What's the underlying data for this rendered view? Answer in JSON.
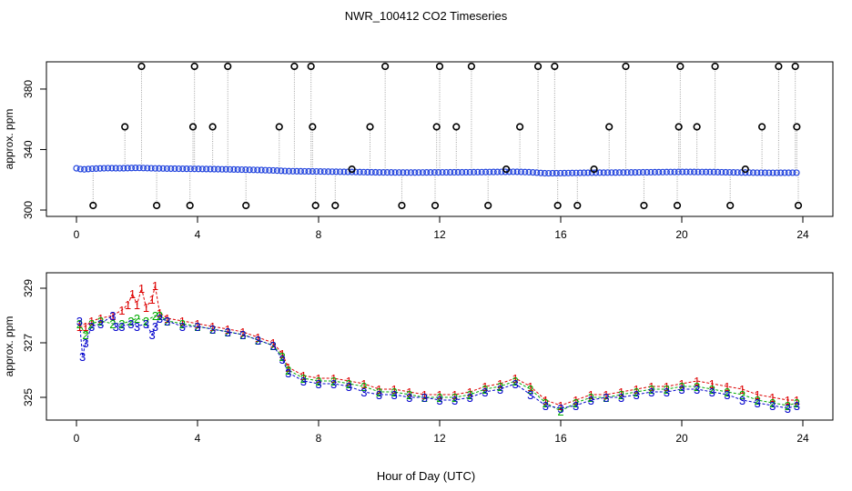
{
  "title": "NWR_100412  CO2 Timeseries",
  "xlabel": "Hour of Day (UTC)",
  "colors": {
    "axis": "#000000",
    "outlier": "#000000",
    "line": "#a0a0a0",
    "series1": "#dd0000",
    "series2": "#00aa00",
    "series3": "#0000cc",
    "point": "#2244dd",
    "cyan": "#00cccc"
  },
  "chart_data": [
    {
      "type": "scatter",
      "panel": "top",
      "ylabel": "approx. ppm",
      "xlim": [
        0,
        24
      ],
      "ylim": [
        300,
        400
      ],
      "xticks": [
        0,
        4,
        8,
        12,
        16,
        20,
        24
      ],
      "yticks": [
        300,
        340,
        380
      ],
      "ytick_labels": [
        "300",
        "340",
        "380"
      ],
      "baseline": [
        [
          0.0,
          327.6
        ],
        [
          0.2,
          326.8
        ],
        [
          0.5,
          327.3
        ],
        [
          1.0,
          327.7
        ],
        [
          1.5,
          327.6
        ],
        [
          2.0,
          327.9
        ],
        [
          2.5,
          327.6
        ],
        [
          3.0,
          327.4
        ],
        [
          4.0,
          327.2
        ],
        [
          5.0,
          326.9
        ],
        [
          6.0,
          326.5
        ],
        [
          6.5,
          326.2
        ],
        [
          7.0,
          325.7
        ],
        [
          7.5,
          325.6
        ],
        [
          8.0,
          325.5
        ],
        [
          9.0,
          325.2
        ],
        [
          10.0,
          324.9
        ],
        [
          11.0,
          324.8
        ],
        [
          12.0,
          324.9
        ],
        [
          13.0,
          325.0
        ],
        [
          14.0,
          325.2
        ],
        [
          14.5,
          325.3
        ],
        [
          15.0,
          325.0
        ],
        [
          15.5,
          324.3
        ],
        [
          16.0,
          324.4
        ],
        [
          17.0,
          324.7
        ],
        [
          18.0,
          324.8
        ],
        [
          19.0,
          325.0
        ],
        [
          19.5,
          325.1
        ],
        [
          20.0,
          325.2
        ],
        [
          21.0,
          325.1
        ],
        [
          22.0,
          324.8
        ],
        [
          23.0,
          324.6
        ],
        [
          23.8,
          324.7
        ]
      ],
      "outliers": [
        [
          0.55,
          303
        ],
        [
          1.6,
          355
        ],
        [
          2.15,
          395
        ],
        [
          2.65,
          303
        ],
        [
          3.75,
          303
        ],
        [
          3.85,
          355
        ],
        [
          3.9,
          395
        ],
        [
          4.5,
          355
        ],
        [
          5.0,
          395
        ],
        [
          5.6,
          303
        ],
        [
          6.7,
          355
        ],
        [
          7.2,
          395
        ],
        [
          7.75,
          395
        ],
        [
          7.8,
          355
        ],
        [
          7.9,
          303
        ],
        [
          8.55,
          303
        ],
        [
          9.1,
          327
        ],
        [
          9.7,
          355
        ],
        [
          10.2,
          395
        ],
        [
          10.75,
          303
        ],
        [
          11.85,
          303
        ],
        [
          11.9,
          355
        ],
        [
          12.0,
          395
        ],
        [
          12.55,
          355
        ],
        [
          13.05,
          395
        ],
        [
          13.6,
          303
        ],
        [
          14.2,
          327
        ],
        [
          14.65,
          355
        ],
        [
          15.25,
          395
        ],
        [
          15.8,
          395
        ],
        [
          15.9,
          303
        ],
        [
          16.55,
          303
        ],
        [
          17.1,
          327
        ],
        [
          17.6,
          355
        ],
        [
          18.15,
          395
        ],
        [
          18.75,
          303
        ],
        [
          19.85,
          303
        ],
        [
          19.9,
          355
        ],
        [
          19.95,
          395
        ],
        [
          20.5,
          355
        ],
        [
          21.1,
          395
        ],
        [
          21.6,
          303
        ],
        [
          22.1,
          327
        ],
        [
          22.65,
          355
        ],
        [
          23.2,
          395
        ],
        [
          23.75,
          395
        ],
        [
          23.8,
          355
        ],
        [
          23.85,
          303
        ]
      ]
    },
    {
      "type": "line",
      "panel": "bottom",
      "ylabel": "approx. ppm",
      "xlim": [
        0,
        24
      ],
      "ylim": [
        324,
        329.5
      ],
      "xticks": [
        0,
        4,
        8,
        12,
        16,
        20,
        24
      ],
      "yticks": [
        325,
        327,
        329
      ],
      "ytick_labels": [
        "325",
        "327",
        "329"
      ],
      "series": [
        {
          "name": "1",
          "values": [
            [
              0.1,
              327.6
            ],
            [
              0.3,
              327.6
            ],
            [
              0.5,
              327.8
            ],
            [
              0.8,
              327.9
            ],
            [
              1.2,
              328.0
            ],
            [
              1.5,
              328.2
            ],
            [
              1.7,
              328.4
            ],
            [
              1.85,
              328.8
            ],
            [
              2.0,
              328.4
            ],
            [
              2.15,
              329.0
            ],
            [
              2.3,
              328.3
            ],
            [
              2.5,
              328.6
            ],
            [
              2.6,
              329.1
            ],
            [
              2.75,
              328.1
            ],
            [
              3.0,
              327.9
            ],
            [
              3.5,
              327.8
            ],
            [
              4.0,
              327.7
            ],
            [
              4.5,
              327.6
            ],
            [
              5.0,
              327.5
            ],
            [
              5.5,
              327.4
            ],
            [
              6.0,
              327.2
            ],
            [
              6.5,
              327.0
            ],
            [
              6.8,
              326.6
            ],
            [
              7.0,
              326.1
            ],
            [
              7.5,
              325.8
            ],
            [
              8.0,
              325.7
            ],
            [
              8.5,
              325.7
            ],
            [
              9.0,
              325.6
            ],
            [
              9.5,
              325.5
            ],
            [
              10.0,
              325.3
            ],
            [
              10.5,
              325.3
            ],
            [
              11.0,
              325.2
            ],
            [
              11.5,
              325.1
            ],
            [
              12.0,
              325.1
            ],
            [
              12.5,
              325.1
            ],
            [
              13.0,
              325.2
            ],
            [
              13.5,
              325.4
            ],
            [
              14.0,
              325.5
            ],
            [
              14.5,
              325.7
            ],
            [
              15.0,
              325.4
            ],
            [
              15.5,
              324.9
            ],
            [
              16.0,
              324.7
            ],
            [
              16.5,
              324.9
            ],
            [
              17.0,
              325.1
            ],
            [
              17.5,
              325.1
            ],
            [
              18.0,
              325.2
            ],
            [
              18.5,
              325.3
            ],
            [
              19.0,
              325.4
            ],
            [
              19.5,
              325.4
            ],
            [
              20.0,
              325.5
            ],
            [
              20.5,
              325.6
            ],
            [
              21.0,
              325.5
            ],
            [
              21.5,
              325.4
            ],
            [
              22.0,
              325.3
            ],
            [
              22.5,
              325.1
            ],
            [
              23.0,
              325.0
            ],
            [
              23.5,
              324.9
            ],
            [
              23.8,
              324.9
            ]
          ]
        },
        {
          "name": "2",
          "values": [
            [
              0.1,
              327.7
            ],
            [
              0.3,
              327.3
            ],
            [
              0.5,
              327.7
            ],
            [
              0.8,
              327.8
            ],
            [
              1.2,
              327.7
            ],
            [
              1.5,
              327.7
            ],
            [
              1.8,
              327.8
            ],
            [
              2.0,
              327.9
            ],
            [
              2.3,
              327.8
            ],
            [
              2.6,
              328.0
            ],
            [
              2.75,
              328.0
            ],
            [
              3.0,
              327.8
            ],
            [
              3.5,
              327.7
            ],
            [
              4.0,
              327.6
            ],
            [
              4.5,
              327.5
            ],
            [
              5.0,
              327.4
            ],
            [
              5.5,
              327.3
            ],
            [
              6.0,
              327.1
            ],
            [
              6.5,
              326.9
            ],
            [
              6.8,
              326.5
            ],
            [
              7.0,
              326.0
            ],
            [
              7.5,
              325.7
            ],
            [
              8.0,
              325.6
            ],
            [
              8.5,
              325.6
            ],
            [
              9.0,
              325.5
            ],
            [
              9.5,
              325.4
            ],
            [
              10.0,
              325.2
            ],
            [
              10.5,
              325.2
            ],
            [
              11.0,
              325.1
            ],
            [
              11.5,
              325.0
            ],
            [
              12.0,
              325.0
            ],
            [
              12.5,
              325.0
            ],
            [
              13.0,
              325.1
            ],
            [
              13.5,
              325.3
            ],
            [
              14.0,
              325.4
            ],
            [
              14.5,
              325.6
            ],
            [
              15.0,
              325.3
            ],
            [
              15.5,
              324.8
            ],
            [
              16.0,
              324.5
            ],
            [
              16.5,
              324.8
            ],
            [
              17.0,
              325.0
            ],
            [
              17.5,
              325.0
            ],
            [
              18.0,
              325.1
            ],
            [
              18.5,
              325.2
            ],
            [
              19.0,
              325.3
            ],
            [
              19.5,
              325.3
            ],
            [
              20.0,
              325.4
            ],
            [
              20.5,
              325.4
            ],
            [
              21.0,
              325.3
            ],
            [
              21.5,
              325.2
            ],
            [
              22.0,
              325.1
            ],
            [
              22.5,
              324.9
            ],
            [
              23.0,
              324.8
            ],
            [
              23.5,
              324.7
            ],
            [
              23.8,
              324.8
            ]
          ]
        },
        {
          "name": "3",
          "values": [
            [
              0.1,
              327.8
            ],
            [
              0.2,
              326.5
            ],
            [
              0.3,
              327.0
            ],
            [
              0.5,
              327.6
            ],
            [
              0.8,
              327.7
            ],
            [
              1.2,
              328.0
            ],
            [
              1.3,
              327.6
            ],
            [
              1.5,
              327.6
            ],
            [
              1.8,
              327.7
            ],
            [
              2.0,
              327.6
            ],
            [
              2.3,
              327.7
            ],
            [
              2.5,
              327.3
            ],
            [
              2.6,
              327.6
            ],
            [
              2.75,
              327.9
            ],
            [
              3.0,
              327.8
            ],
            [
              3.5,
              327.6
            ],
            [
              4.0,
              327.6
            ],
            [
              4.5,
              327.5
            ],
            [
              5.0,
              327.4
            ],
            [
              5.5,
              327.3
            ],
            [
              6.0,
              327.1
            ],
            [
              6.5,
              326.9
            ],
            [
              6.8,
              326.4
            ],
            [
              7.0,
              325.9
            ],
            [
              7.5,
              325.6
            ],
            [
              8.0,
              325.5
            ],
            [
              8.5,
              325.5
            ],
            [
              9.0,
              325.4
            ],
            [
              9.5,
              325.2
            ],
            [
              10.0,
              325.1
            ],
            [
              10.5,
              325.1
            ],
            [
              11.0,
              325.0
            ],
            [
              11.5,
              325.0
            ],
            [
              12.0,
              324.9
            ],
            [
              12.5,
              324.9
            ],
            [
              13.0,
              325.0
            ],
            [
              13.5,
              325.2
            ],
            [
              14.0,
              325.3
            ],
            [
              14.5,
              325.5
            ],
            [
              15.0,
              325.1
            ],
            [
              15.5,
              324.7
            ],
            [
              16.0,
              324.6
            ],
            [
              16.5,
              324.7
            ],
            [
              17.0,
              324.9
            ],
            [
              17.5,
              325.0
            ],
            [
              18.0,
              325.0
            ],
            [
              18.5,
              325.1
            ],
            [
              19.0,
              325.2
            ],
            [
              19.5,
              325.2
            ],
            [
              20.0,
              325.3
            ],
            [
              20.5,
              325.3
            ],
            [
              21.0,
              325.2
            ],
            [
              21.5,
              325.1
            ],
            [
              22.0,
              324.9
            ],
            [
              22.5,
              324.8
            ],
            [
              23.0,
              324.7
            ],
            [
              23.5,
              324.6
            ],
            [
              23.8,
              324.7
            ]
          ]
        }
      ]
    }
  ]
}
